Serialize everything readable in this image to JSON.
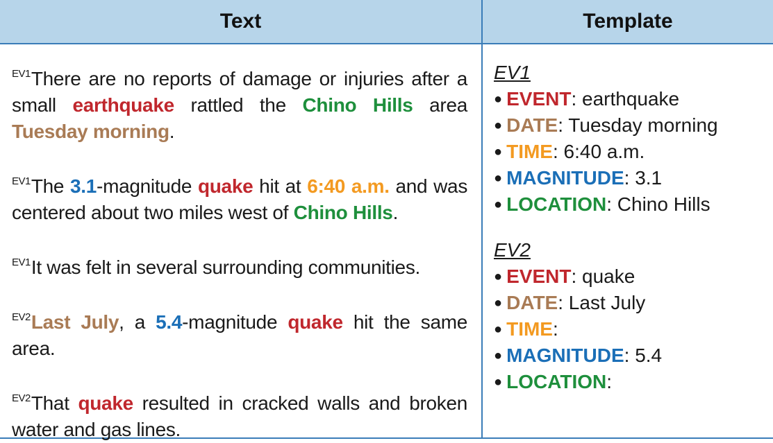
{
  "header": {
    "text_col": "Text",
    "template_col": "Template"
  },
  "paragraphs": [
    {
      "tag": "EV1",
      "parts": [
        {
          "t": "There are no reports of damage or injuries after a small "
        },
        {
          "t": "earthquake",
          "c": "event"
        },
        {
          "t": " rattled the "
        },
        {
          "t": "Chino Hills",
          "c": "location"
        },
        {
          "t": " area "
        },
        {
          "t": "Tuesday morning",
          "c": "date"
        },
        {
          "t": "."
        }
      ]
    },
    {
      "tag": "EV1",
      "parts": [
        {
          "t": "The "
        },
        {
          "t": "3.1",
          "c": "magnitude"
        },
        {
          "t": "-magnitude "
        },
        {
          "t": "quake",
          "c": "event"
        },
        {
          "t": " hit at "
        },
        {
          "t": "6:40 a.m.",
          "c": "time"
        },
        {
          "t": " and was centered about two miles west of "
        },
        {
          "t": "Chino Hills",
          "c": "location"
        },
        {
          "t": "."
        }
      ]
    },
    {
      "tag": "EV1",
      "parts": [
        {
          "t": "It was felt in several surrounding communities."
        }
      ]
    },
    {
      "tag": "EV2",
      "parts": [
        {
          "t": "Last July",
          "c": "date"
        },
        {
          "t": ", a "
        },
        {
          "t": "5.4",
          "c": "magnitude"
        },
        {
          "t": "-magnitude "
        },
        {
          "t": "quake",
          "c": "event"
        },
        {
          "t": " hit the same area."
        }
      ]
    },
    {
      "tag": "EV2",
      "parts": [
        {
          "t": "That "
        },
        {
          "t": "quake",
          "c": "event"
        },
        {
          "t": " resulted in cracked walls and broken water and gas lines."
        }
      ]
    }
  ],
  "templates": [
    {
      "title": "EV1",
      "fields": [
        {
          "key": "EVENT",
          "value": ": earthquake",
          "c": "event"
        },
        {
          "key": "DATE",
          "value": ": Tuesday morning",
          "c": "date"
        },
        {
          "key": "TIME",
          "value": ": 6:40 a.m.",
          "c": "time"
        },
        {
          "key": "MAGNITUDE",
          "value": ": 3.1",
          "c": "magnitude"
        },
        {
          "key": "LOCATION",
          "value": ": Chino Hills",
          "c": "location"
        }
      ]
    },
    {
      "title": "EV2",
      "fields": [
        {
          "key": "EVENT",
          "value": ": quake",
          "c": "event"
        },
        {
          "key": "DATE",
          "value": ": Last July",
          "c": "date"
        },
        {
          "key": "TIME",
          "value": ":",
          "c": "time"
        },
        {
          "key": "MAGNITUDE",
          "value": ": 5.4",
          "c": "magnitude"
        },
        {
          "key": "LOCATION",
          "value": ":",
          "c": "location"
        }
      ]
    }
  ],
  "colors": {
    "event": "#c0272d",
    "date": "#a97b55",
    "time": "#f39a21",
    "magnitude": "#1b6fb7",
    "location": "#1e8f3c",
    "header_bg": "#b7d5ea",
    "rule": "#3a7cb8"
  }
}
